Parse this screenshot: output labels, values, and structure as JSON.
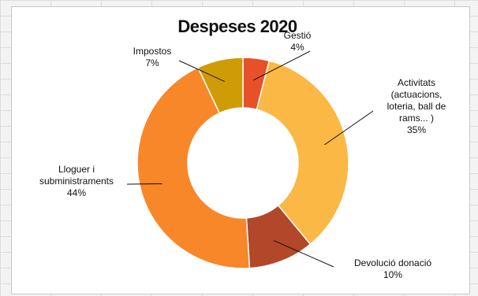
{
  "chart_data": {
    "type": "pie",
    "donut": true,
    "title": "Despeses 2020",
    "slices": [
      {
        "label_lines": [
          "Gestió",
          "4%"
        ],
        "value": 4,
        "color": "#e8502a"
      },
      {
        "label_lines": [
          "Activitats",
          "(actuacions,",
          "loteria, ball de",
          "rams... )",
          "35%"
        ],
        "value": 35,
        "color": "#fbb845"
      },
      {
        "label_lines": [
          "Devolució donació",
          "10%"
        ],
        "value": 10,
        "color": "#b2472a"
      },
      {
        "label_lines": [
          "Lloguer i",
          "subministraments",
          "44%"
        ],
        "value": 44,
        "color": "#f8872a"
      },
      {
        "label_lines": [
          "Impostos",
          "7%"
        ],
        "value": 7,
        "color": "#cf9b07"
      }
    ]
  }
}
